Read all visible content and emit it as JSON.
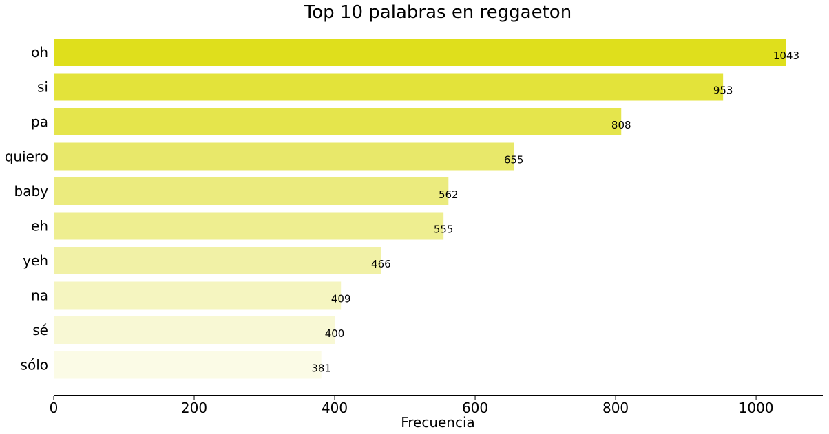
{
  "chart_data": {
    "type": "bar",
    "orientation": "horizontal",
    "title": "Top 10 palabras en reggaeton",
    "xlabel": "Frecuencia",
    "ylabel": "",
    "categories": [
      "oh",
      "si",
      "pa",
      "quiero",
      "baby",
      "eh",
      "yeh",
      "na",
      "sé",
      "sólo"
    ],
    "values": [
      1043,
      953,
      808,
      655,
      562,
      555,
      466,
      409,
      400,
      381
    ],
    "data_labels": [
      "1043",
      "953",
      "808",
      "655",
      "562",
      "555",
      "466",
      "409",
      "400",
      "381"
    ],
    "xlim": [
      0,
      1095
    ],
    "xticks": [
      0,
      200,
      400,
      600,
      800,
      1000
    ],
    "xtick_labels": [
      "0",
      "200",
      "400",
      "600",
      "800",
      "1000"
    ],
    "grid": false,
    "bar_colors": [
      "#dfdf1c",
      "#e3e33a",
      "#e5e54c",
      "#e8e86a",
      "#ebeb7e",
      "#eeee90",
      "#f1f1a6",
      "#f5f5c0",
      "#f8f8d4",
      "#fbfbe6"
    ]
  }
}
